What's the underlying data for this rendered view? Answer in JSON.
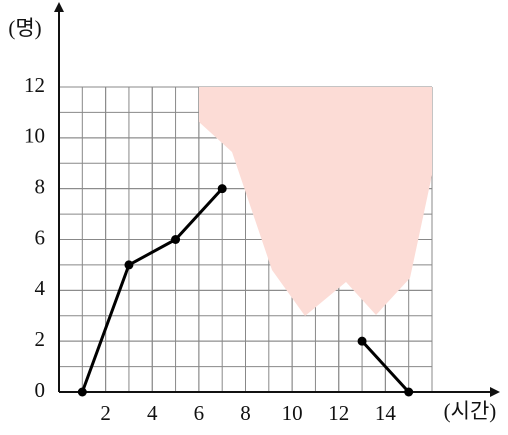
{
  "chart_data": {
    "type": "line",
    "y_label": "(명)",
    "x_label": "(시간)",
    "x": [
      1,
      3,
      5,
      7,
      9,
      11,
      13,
      15
    ],
    "series": [
      {
        "color": "#000000",
        "values": [
          0,
          5,
          6,
          8,
          null,
          null,
          2,
          0
        ]
      }
    ],
    "xlim": [
      0,
      16
    ],
    "ylim": [
      0,
      12
    ],
    "xticks": [
      2,
      4,
      6,
      8,
      10,
      12,
      14
    ],
    "yticks": [
      0,
      2,
      4,
      6,
      8,
      10,
      12
    ],
    "grid": true
  }
}
